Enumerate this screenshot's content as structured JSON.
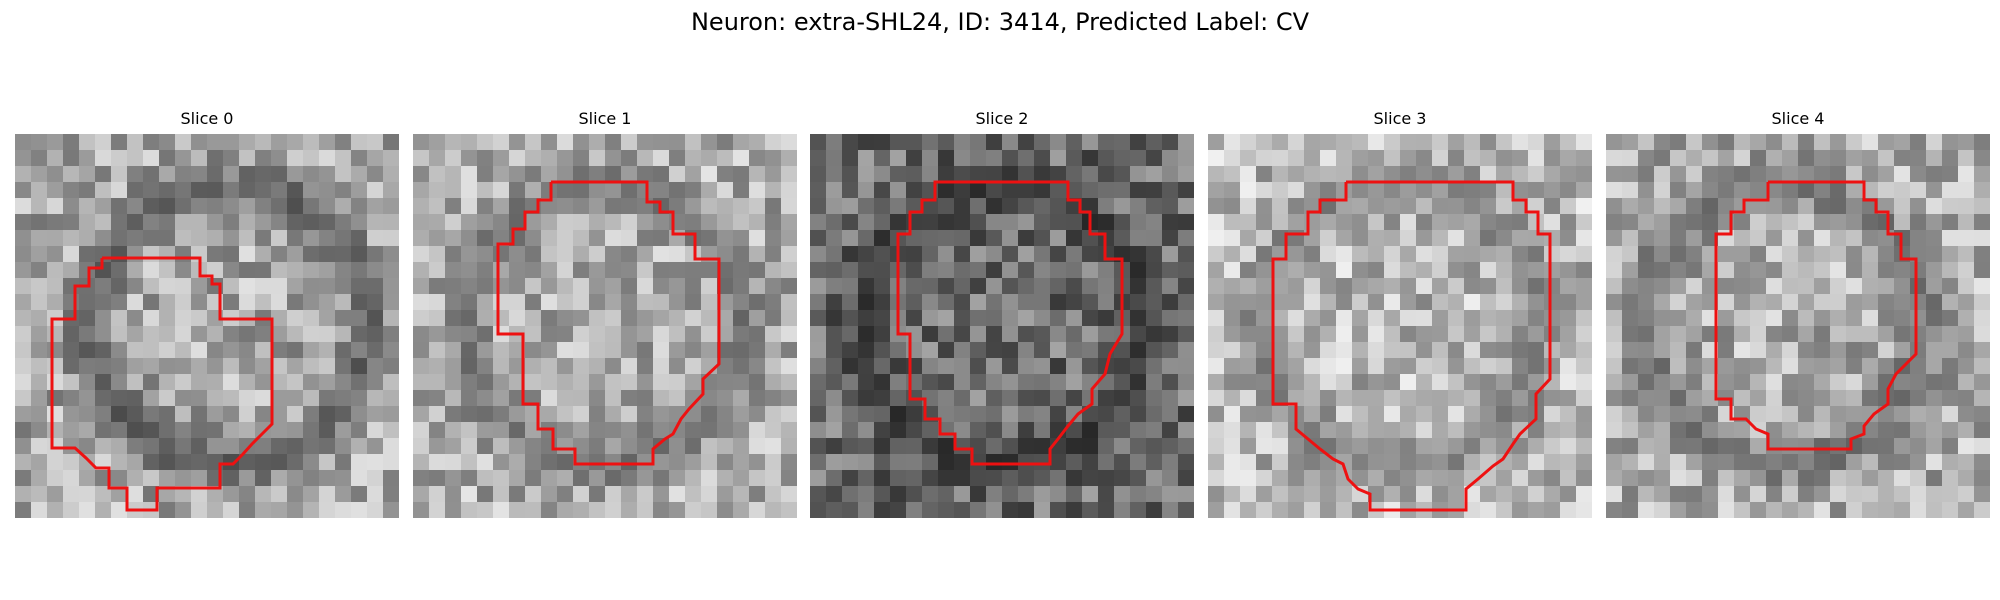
{
  "figure": {
    "title": "Neuron: extra-SHL24, ID: 3414, Predicted Label: CV"
  },
  "contour_color": "#ee1111",
  "panels": [
    {
      "title": "Slice 0",
      "seed": 11,
      "mean": 170,
      "ring_dark": 40,
      "center_shift": 0.06
    },
    {
      "title": "Slice 1",
      "seed": 23,
      "mean": 175,
      "ring_dark": 80,
      "center_shift": 0.0
    },
    {
      "title": "Slice 2",
      "seed": 37,
      "mean": 110,
      "ring_dark": 25,
      "center_shift": 0.0
    },
    {
      "title": "Slice 3",
      "seed": 51,
      "mean": 185,
      "ring_dark": 95,
      "center_shift": 0.0
    },
    {
      "title": "Slice 4",
      "seed": 67,
      "mean": 175,
      "ring_dark": 75,
      "center_shift": -0.04
    }
  ]
}
